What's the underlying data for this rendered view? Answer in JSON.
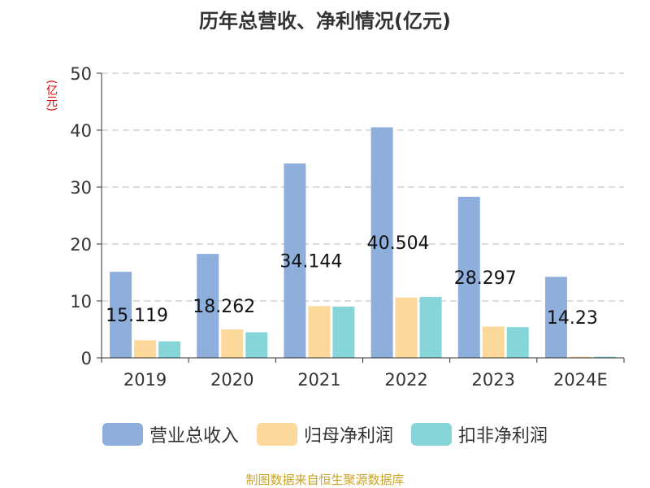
{
  "chart_data": {
    "type": "bar",
    "title": "历年总营收、净利情况(亿元)",
    "ylabel": "(亿元)",
    "ylim": [
      0,
      50
    ],
    "yticks": [
      0,
      10,
      20,
      30,
      40,
      50
    ],
    "grid": true,
    "legend_position": "bottom",
    "categories": [
      "2019",
      "2020",
      "2021",
      "2022",
      "2023",
      "2024E"
    ],
    "series": [
      {
        "name": "营业总收入",
        "color": "#8eaedc",
        "values": [
          15.119,
          18.262,
          34.144,
          40.504,
          28.297,
          14.23
        ]
      },
      {
        "name": "归母净利润",
        "color": "#fdd89b",
        "values": [
          3.1,
          5.0,
          9.1,
          10.6,
          5.5,
          0.2
        ]
      },
      {
        "name": "扣非净利润",
        "color": "#86d5d8",
        "values": [
          2.9,
          4.5,
          9.0,
          10.7,
          5.4,
          0.2
        ]
      }
    ],
    "data_labels": [
      "15.119",
      "18.262",
      "34.144",
      "40.504",
      "28.297",
      "14.23"
    ]
  },
  "footer": {
    "source": "制图数据来自恒生聚源数据库"
  }
}
